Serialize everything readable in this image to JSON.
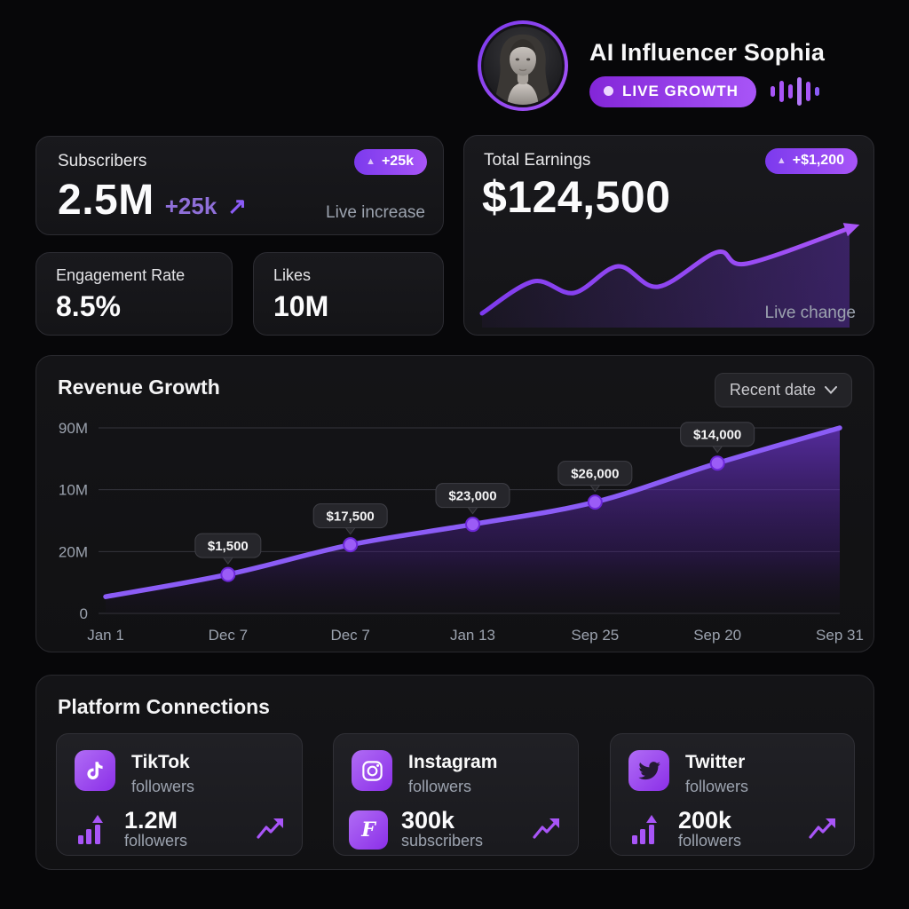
{
  "header": {
    "name": "AI Influencer Sophia",
    "live_badge": "LIVE GROWTH"
  },
  "icons": {
    "up_triangle": "▲",
    "arrow_up_right": "↗"
  },
  "colors": {
    "accent": "#8b5cf6",
    "accent_bright": "#a855f7",
    "badge_gradient_start": "#7c3aed",
    "badge_gradient_end": "#a855f7",
    "text_muted": "#9ca3af",
    "grid_line": "#35353c",
    "label_pill_bg": "#26262b",
    "label_pill_border": "#3f3f46"
  },
  "stats": {
    "subscribers": {
      "label": "Subscribers",
      "value": "2.5M",
      "delta": "+25k",
      "badge": "+25k",
      "caption": "Live increase"
    },
    "earnings": {
      "label": "Total Earnings",
      "value": "$124,500",
      "badge": "+$1,200",
      "caption": "Live change"
    },
    "engagement": {
      "label": "Engagement Rate",
      "value": "8.5%"
    },
    "likes": {
      "label": "Likes",
      "value": "10M"
    }
  },
  "revenue": {
    "title": "Revenue Growth",
    "dropdown_value": "Recent date"
  },
  "chart_data": [
    {
      "id": "revenue-growth",
      "type": "area",
      "title": "Revenue Growth",
      "x_labels": [
        "Jan 1",
        "Dec 7",
        "Dec 7",
        "Jan 13",
        "Sep 25",
        "Sep 20",
        "Sep 31"
      ],
      "y_tick_labels": [
        "90M",
        "10M",
        "20M",
        "0"
      ],
      "grid": true,
      "legend": false,
      "points": [
        {
          "x": "Jan 1",
          "label": null,
          "height_pct": 9
        },
        {
          "x": "Dec 7",
          "label": "$1,500",
          "height_pct": 21
        },
        {
          "x": "Dec 7",
          "label": "$17,500",
          "height_pct": 37
        },
        {
          "x": "Jan 13",
          "label": "$23,000",
          "height_pct": 48
        },
        {
          "x": "Sep 25",
          "label": "$26,000",
          "height_pct": 60
        },
        {
          "x": "Sep 20",
          "label": "$14,000",
          "height_pct": 81
        },
        {
          "x": "Sep 31",
          "label": null,
          "height_pct": 100
        }
      ],
      "line_color": "#8b5cf6"
    },
    {
      "id": "earnings-sparkline",
      "type": "line",
      "title": "Total Earnings live trend",
      "points_pct": [
        [
          0,
          4
        ],
        [
          14,
          40
        ],
        [
          25,
          27
        ],
        [
          37,
          57
        ],
        [
          48,
          34
        ],
        [
          64,
          73
        ],
        [
          72,
          60
        ],
        [
          100,
          100
        ]
      ],
      "line_color": "#8b5cf6",
      "arrow_end": true
    }
  ],
  "platforms": {
    "title": "Platform Connections",
    "cards": [
      {
        "name": "TikTok",
        "subtitle": "followers",
        "value": "1.2M",
        "value_label": "followers"
      },
      {
        "name": "Instagram",
        "subtitle": "followers",
        "value": "300k",
        "value_label": "subscribers"
      },
      {
        "name": "Twitter",
        "subtitle": "followers",
        "value": "200k",
        "value_label": "followers"
      }
    ]
  }
}
